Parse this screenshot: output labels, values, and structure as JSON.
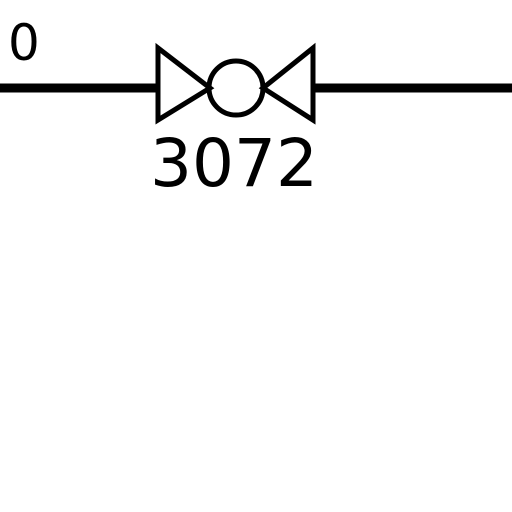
{
  "diagram": {
    "line_label": "0",
    "valve_tag": "3072"
  },
  "colors": {
    "ink": "#000000",
    "background": "#ffffff"
  },
  "icons": {
    "valve": "ball-valve-icon"
  }
}
